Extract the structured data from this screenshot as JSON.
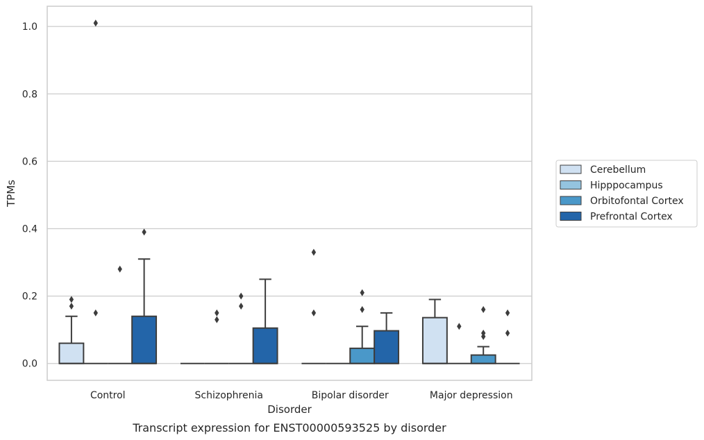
{
  "chart_data": {
    "type": "boxplot",
    "title": "",
    "caption": "Transcript expression for ENST00000593525 by disorder",
    "xlabel": "Disorder",
    "ylabel": "TPMs",
    "ylim": [
      -0.05,
      1.06
    ],
    "yticks": [
      0.0,
      0.2,
      0.4,
      0.6,
      0.8,
      1.0
    ],
    "ytick_labels": [
      "0.0",
      "0.2",
      "0.4",
      "0.6",
      "0.8",
      "1.0"
    ],
    "grid": true,
    "legend_position": "right",
    "categories": [
      "Control",
      "Schizophrenia",
      "Bipolar disorder",
      "Major depression"
    ],
    "series": [
      {
        "name": "Cerebellum",
        "color": "#d0e1f2",
        "boxes": [
          {
            "q1": 0.0,
            "median": 0.0,
            "q3": 0.06,
            "whisker_low": 0.0,
            "whisker_high": 0.14,
            "outliers": [
              0.17,
              0.19
            ]
          },
          {
            "q1": 0.0,
            "median": 0.0,
            "q3": 0.0,
            "whisker_low": 0.0,
            "whisker_high": 0.0,
            "outliers": []
          },
          {
            "q1": 0.0,
            "median": 0.0,
            "q3": 0.0,
            "whisker_low": 0.0,
            "whisker_high": 0.0,
            "outliers": [
              0.15,
              0.33
            ]
          },
          {
            "q1": 0.0,
            "median": 0.0,
            "q3": 0.136,
            "whisker_low": 0.0,
            "whisker_high": 0.19,
            "outliers": []
          }
        ]
      },
      {
        "name": "Hipppocampus",
        "color": "#94c4df",
        "boxes": [
          {
            "q1": 0.0,
            "median": 0.0,
            "q3": 0.0,
            "whisker_low": 0.0,
            "whisker_high": 0.0,
            "outliers": [
              0.15,
              1.01
            ]
          },
          {
            "q1": 0.0,
            "median": 0.0,
            "q3": 0.0,
            "whisker_low": 0.0,
            "whisker_high": 0.0,
            "outliers": [
              0.13,
              0.15
            ]
          },
          {
            "q1": 0.0,
            "median": 0.0,
            "q3": 0.0,
            "whisker_low": 0.0,
            "whisker_high": 0.0,
            "outliers": []
          },
          {
            "q1": 0.0,
            "median": 0.0,
            "q3": 0.0,
            "whisker_low": 0.0,
            "whisker_high": 0.0,
            "outliers": [
              0.11
            ]
          }
        ]
      },
      {
        "name": "Orbitofontal Cortex",
        "color": "#4a98c9",
        "boxes": [
          {
            "q1": 0.0,
            "median": 0.0,
            "q3": 0.0,
            "whisker_low": 0.0,
            "whisker_high": 0.0,
            "outliers": [
              0.28
            ]
          },
          {
            "q1": 0.0,
            "median": 0.0,
            "q3": 0.0,
            "whisker_low": 0.0,
            "whisker_high": 0.0,
            "outliers": [
              0.17,
              0.2
            ]
          },
          {
            "q1": 0.0,
            "median": 0.0,
            "q3": 0.045,
            "whisker_low": 0.0,
            "whisker_high": 0.11,
            "outliers": [
              0.16,
              0.21
            ]
          },
          {
            "q1": 0.0,
            "median": 0.0,
            "q3": 0.025,
            "whisker_low": 0.0,
            "whisker_high": 0.05,
            "outliers": [
              0.08,
              0.09,
              0.16
            ]
          }
        ]
      },
      {
        "name": "Prefrontal Cortex",
        "color": "#2365a9",
        "boxes": [
          {
            "q1": 0.0,
            "median": 0.0,
            "q3": 0.14,
            "whisker_low": 0.0,
            "whisker_high": 0.31,
            "outliers": [
              0.39
            ]
          },
          {
            "q1": 0.0,
            "median": 0.0,
            "q3": 0.105,
            "whisker_low": 0.0,
            "whisker_high": 0.25,
            "outliers": []
          },
          {
            "q1": 0.0,
            "median": 0.0,
            "q3": 0.097,
            "whisker_low": 0.0,
            "whisker_high": 0.15,
            "outliers": []
          },
          {
            "q1": 0.0,
            "median": 0.0,
            "q3": 0.0,
            "whisker_low": 0.0,
            "whisker_high": 0.0,
            "outliers": [
              0.09,
              0.15
            ]
          }
        ]
      }
    ]
  }
}
